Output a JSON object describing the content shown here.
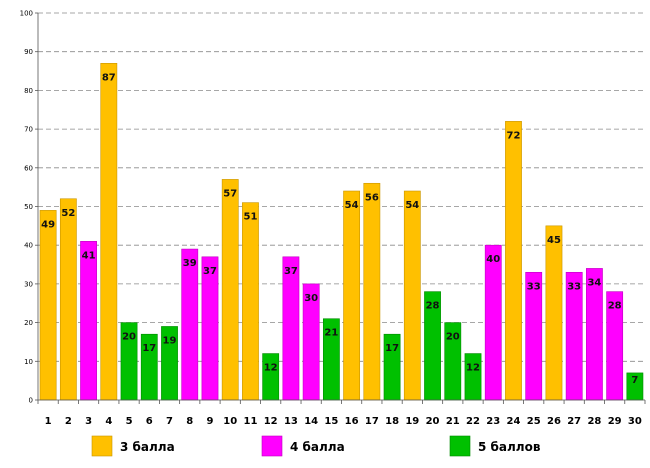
{
  "chart_data": {
    "type": "bar",
    "title": "",
    "xlabel": "",
    "ylabel": "",
    "ylim": [
      0,
      100
    ],
    "yticks": [
      0,
      10,
      20,
      30,
      40,
      50,
      60,
      70,
      80,
      90,
      100
    ],
    "grid": true,
    "categories": [
      "1",
      "2",
      "3",
      "4",
      "5",
      "6",
      "7",
      "8",
      "9",
      "10",
      "11",
      "12",
      "13",
      "14",
      "15",
      "16",
      "17",
      "18",
      "19",
      "20",
      "21",
      "22",
      "23",
      "24",
      "25",
      "26",
      "27",
      "28",
      "29",
      "30"
    ],
    "values": [
      49,
      52,
      41,
      87,
      20,
      17,
      19,
      39,
      37,
      57,
      51,
      12,
      37,
      30,
      21,
      54,
      56,
      17,
      54,
      28,
      20,
      12,
      40,
      72,
      33,
      45,
      33,
      34,
      28,
      7
    ],
    "groups": [
      "3",
      "3",
      "4",
      "3",
      "5",
      "5",
      "5",
      "4",
      "4",
      "3",
      "3",
      "5",
      "4",
      "4",
      "5",
      "3",
      "3",
      "5",
      "3",
      "5",
      "5",
      "5",
      "4",
      "3",
      "4",
      "3",
      "4",
      "4",
      "4",
      "5"
    ],
    "legend": [
      {
        "key": "3",
        "label": "3 балла",
        "color": "#FFC000"
      },
      {
        "key": "4",
        "label": "4 балла",
        "color": "#FF00FF"
      },
      {
        "key": "5",
        "label": "5 баллов",
        "color": "#00C000"
      }
    ],
    "legend_position": "bottom"
  }
}
